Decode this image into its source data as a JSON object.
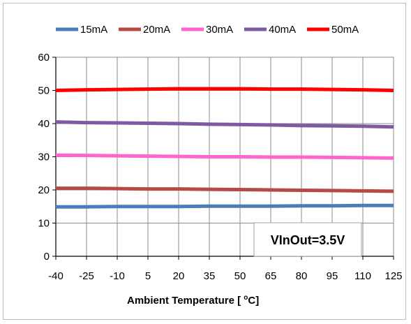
{
  "chart_data": {
    "type": "line",
    "title": "",
    "xlabel": "Ambient Temperature [ ",
    "xlabel_unit": "oC]",
    "ylabel": "",
    "x": [
      -40,
      -25,
      -10,
      5,
      20,
      35,
      50,
      65,
      80,
      95,
      110,
      125
    ],
    "x_tick_labels": [
      "-40",
      "-25",
      "-10",
      "5",
      "20",
      "35",
      "50",
      "65",
      "80",
      "95",
      "110",
      "125"
    ],
    "xlim": [
      -40,
      125
    ],
    "y_ticks": [
      0,
      10,
      20,
      30,
      40,
      50,
      60
    ],
    "y_tick_labels": [
      "0",
      "10",
      "20",
      "30",
      "40",
      "50",
      "60"
    ],
    "ylim": [
      0,
      60
    ],
    "grid": true,
    "legend_position": "top",
    "annotation": "VInOut=3.5V",
    "series": [
      {
        "name": "15mA",
        "color": "#4a7ebb",
        "values": [
          14.9,
          14.9,
          15.0,
          15.0,
          15.0,
          15.1,
          15.1,
          15.1,
          15.2,
          15.2,
          15.3,
          15.3
        ]
      },
      {
        "name": "20mA",
        "color": "#b84a45",
        "values": [
          20.5,
          20.5,
          20.4,
          20.3,
          20.3,
          20.2,
          20.1,
          20.0,
          19.9,
          19.8,
          19.7,
          19.6
        ]
      },
      {
        "name": "30mA",
        "color": "#ff66cc",
        "values": [
          30.5,
          30.4,
          30.3,
          30.2,
          30.1,
          30.0,
          30.0,
          29.9,
          29.9,
          29.8,
          29.7,
          29.6
        ]
      },
      {
        "name": "40mA",
        "color": "#7e5aa2",
        "values": [
          40.5,
          40.3,
          40.2,
          40.1,
          40.0,
          39.8,
          39.7,
          39.6,
          39.4,
          39.3,
          39.2,
          39.0
        ]
      },
      {
        "name": "50mA",
        "color": "#ff0000",
        "values": [
          50.0,
          50.2,
          50.3,
          50.4,
          50.5,
          50.5,
          50.5,
          50.4,
          50.4,
          50.3,
          50.2,
          50.0
        ]
      }
    ]
  }
}
